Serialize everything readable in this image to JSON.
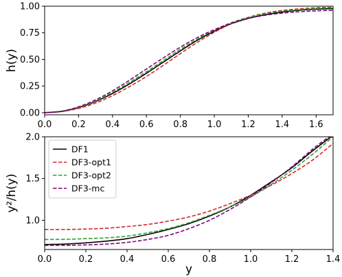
{
  "chart_data": [
    {
      "type": "line",
      "xlabel": "",
      "ylabel": "h(y)",
      "xlim": [
        0.0,
        1.7
      ],
      "ylim": [
        -0.02,
        1.0
      ],
      "xticks": [
        "0.0",
        "0.2",
        "0.4",
        "0.6",
        "0.8",
        "1.0",
        "1.2",
        "1.4",
        "1.6"
      ],
      "yticks": [
        "0.00",
        "0.25",
        "0.50",
        "0.75",
        "1.00"
      ],
      "grid": false,
      "series": [
        {
          "name": "DF1",
          "color": "#000000",
          "dash": "solid",
          "x": [
            0.0,
            0.1,
            0.2,
            0.3,
            0.4,
            0.5,
            0.6,
            0.7,
            0.8,
            0.9,
            1.0,
            1.1,
            1.2,
            1.3,
            1.4,
            1.5,
            1.6,
            1.7
          ],
          "y": [
            0.0,
            0.012,
            0.048,
            0.105,
            0.18,
            0.27,
            0.37,
            0.475,
            0.58,
            0.68,
            0.765,
            0.835,
            0.885,
            0.92,
            0.945,
            0.962,
            0.972,
            0.978
          ]
        },
        {
          "name": "DF3-opt1",
          "color": "#d62728",
          "dash": "dashed",
          "x": [
            0.0,
            0.1,
            0.2,
            0.3,
            0.4,
            0.5,
            0.6,
            0.7,
            0.8,
            0.9,
            1.0,
            1.1,
            1.2,
            1.3,
            1.4,
            1.5,
            1.6,
            1.7
          ],
          "y": [
            0.0,
            0.01,
            0.04,
            0.09,
            0.16,
            0.245,
            0.34,
            0.445,
            0.555,
            0.66,
            0.755,
            0.835,
            0.895,
            0.935,
            0.96,
            0.975,
            0.985,
            0.99
          ]
        },
        {
          "name": "DF3-opt2",
          "color": "#2ca02c",
          "dash": "dashed",
          "x": [
            0.0,
            0.1,
            0.2,
            0.3,
            0.4,
            0.5,
            0.6,
            0.7,
            0.8,
            0.9,
            1.0,
            1.1,
            1.2,
            1.3,
            1.4,
            1.5,
            1.6,
            1.7
          ],
          "y": [
            0.0,
            0.013,
            0.05,
            0.11,
            0.19,
            0.285,
            0.385,
            0.49,
            0.595,
            0.69,
            0.775,
            0.845,
            0.895,
            0.93,
            0.953,
            0.968,
            0.978,
            0.985
          ]
        },
        {
          "name": "DF3-mc",
          "color": "#800080",
          "dash": "dashed",
          "x": [
            0.0,
            0.1,
            0.2,
            0.3,
            0.4,
            0.5,
            0.6,
            0.7,
            0.8,
            0.9,
            1.0,
            1.1,
            1.2,
            1.3,
            1.4,
            1.5,
            1.6,
            1.7
          ],
          "y": [
            0.0,
            0.014,
            0.055,
            0.12,
            0.205,
            0.305,
            0.41,
            0.515,
            0.615,
            0.705,
            0.78,
            0.84,
            0.885,
            0.915,
            0.935,
            0.948,
            0.956,
            0.962
          ]
        }
      ]
    },
    {
      "type": "line",
      "xlabel": "y",
      "ylabel": "y²/h(y)",
      "xlim": [
        0.0,
        1.4
      ],
      "ylim": [
        0.65,
        2.0
      ],
      "xticks": [
        "0.0",
        "0.2",
        "0.4",
        "0.6",
        "0.8",
        "1.0",
        "1.2",
        "1.4"
      ],
      "yticks": [
        "1.0",
        "1.5",
        "2.0"
      ],
      "grid": false,
      "legend": {
        "placement": "upper-left",
        "entries": [
          "DF1",
          "DF3-opt1",
          "DF3-opt2",
          "DF3-mc"
        ]
      },
      "series": [
        {
          "name": "DF1",
          "color": "#000000",
          "dash": "solid",
          "x": [
            0.0,
            0.1,
            0.2,
            0.3,
            0.4,
            0.5,
            0.6,
            0.7,
            0.8,
            0.9,
            1.0,
            1.1,
            1.2,
            1.3,
            1.39
          ],
          "y": [
            0.71,
            0.715,
            0.73,
            0.75,
            0.78,
            0.83,
            0.89,
            0.96,
            1.05,
            1.16,
            1.3,
            1.46,
            1.63,
            1.83,
            2.0
          ]
        },
        {
          "name": "DF3-opt1",
          "color": "#d62728",
          "dash": "dashed",
          "x": [
            0.0,
            0.1,
            0.2,
            0.3,
            0.4,
            0.5,
            0.6,
            0.7,
            0.8,
            0.9,
            1.0,
            1.1,
            1.2,
            1.3,
            1.4
          ],
          "y": [
            0.89,
            0.89,
            0.895,
            0.905,
            0.925,
            0.95,
            0.99,
            1.04,
            1.11,
            1.2,
            1.3,
            1.42,
            1.56,
            1.72,
            1.92
          ]
        },
        {
          "name": "DF3-opt2",
          "color": "#2ca02c",
          "dash": "dashed",
          "x": [
            0.0,
            0.1,
            0.2,
            0.3,
            0.4,
            0.5,
            0.6,
            0.7,
            0.8,
            0.9,
            1.0,
            1.1,
            1.2,
            1.3,
            1.4
          ],
          "y": [
            0.77,
            0.772,
            0.78,
            0.79,
            0.81,
            0.85,
            0.9,
            0.97,
            1.06,
            1.16,
            1.28,
            1.43,
            1.6,
            1.79,
            2.0
          ]
        },
        {
          "name": "DF3-mc",
          "color": "#800080",
          "dash": "dashed",
          "x": [
            0.0,
            0.1,
            0.2,
            0.3,
            0.4,
            0.5,
            0.6,
            0.7,
            0.8,
            0.9,
            1.0,
            1.1,
            1.2,
            1.3,
            1.38
          ],
          "y": [
            0.7,
            0.7,
            0.705,
            0.715,
            0.735,
            0.77,
            0.82,
            0.9,
            1.0,
            1.13,
            1.28,
            1.45,
            1.64,
            1.85,
            2.0
          ]
        }
      ]
    }
  ]
}
